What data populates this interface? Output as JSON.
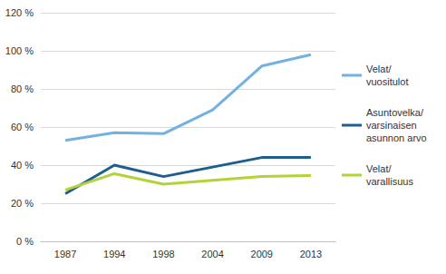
{
  "chart_data": {
    "type": "line",
    "categories": [
      "1987",
      "1994",
      "1998",
      "2004",
      "2009",
      "2013"
    ],
    "series": [
      {
        "name": "Velat/\nvuositulot",
        "color": "#72b2e0",
        "values": [
          53,
          57,
          56.5,
          69,
          92,
          98
        ]
      },
      {
        "name": "Asuntovelka/\nvarsinaisen\nasunnon arvo",
        "color": "#1c5e8e",
        "values": [
          25,
          40,
          34,
          39,
          44,
          44
        ]
      },
      {
        "name": "Velat/\nvarallisuus",
        "color": "#b3d235",
        "values": [
          27,
          35.5,
          30,
          32,
          34,
          34.5
        ]
      }
    ],
    "ylim": [
      0,
      120
    ],
    "yticks": [
      {
        "value": 0,
        "label": "0 %"
      },
      {
        "value": 20,
        "label": "20 %"
      },
      {
        "value": 40,
        "label": "40 %"
      },
      {
        "value": 60,
        "label": "60 %"
      },
      {
        "value": 80,
        "label": "80 %"
      },
      {
        "value": 100,
        "label": "100 %"
      },
      {
        "value": 120,
        "label": "120 %"
      }
    ],
    "grid": true,
    "legend": "right"
  }
}
